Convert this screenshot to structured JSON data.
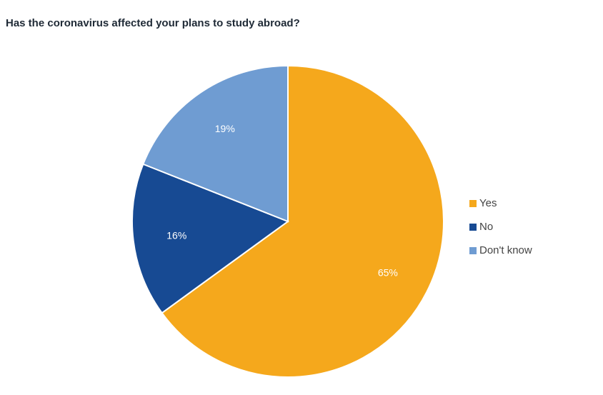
{
  "chart_data": {
    "type": "pie",
    "title": "Has the coronavirus affected your plans to study abroad?",
    "categories": [
      "Yes",
      "No",
      "Don't know"
    ],
    "values": [
      65,
      16,
      19
    ],
    "labels": [
      "65%",
      "16%",
      "19%"
    ],
    "colors": [
      "#F5A81C",
      "#174A93",
      "#6F9CD2"
    ],
    "start": "top",
    "direction": "clockwise",
    "legend_position": "right"
  }
}
